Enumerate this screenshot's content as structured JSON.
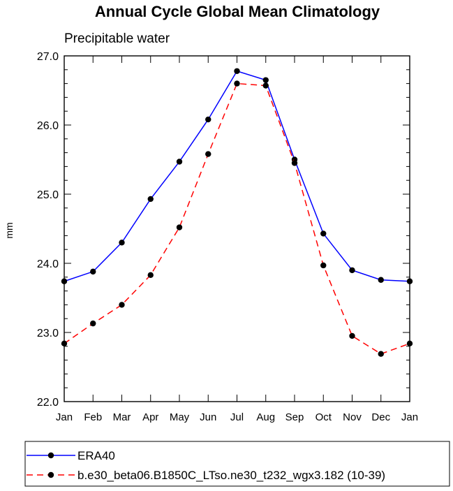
{
  "chart_data": {
    "type": "line",
    "title": "Annual Cycle Global Mean Climatology",
    "subtitle": "Precipitable water",
    "xlabel": "",
    "ylabel": "mm",
    "categories": [
      "Jan",
      "Feb",
      "Mar",
      "Apr",
      "May",
      "Jun",
      "Jul",
      "Aug",
      "Sep",
      "Oct",
      "Nov",
      "Dec",
      "Jan"
    ],
    "ylim": [
      22.0,
      27.0
    ],
    "yticks": [
      "22.0",
      "23.0",
      "24.0",
      "25.0",
      "26.0",
      "27.0"
    ],
    "grid": false,
    "legend_position": "bottom",
    "series": [
      {
        "name": "ERA40",
        "color": "#0000ff",
        "dash": "solid",
        "values": [
          23.74,
          23.88,
          24.3,
          24.93,
          25.47,
          26.08,
          26.78,
          26.65,
          25.5,
          24.43,
          23.9,
          23.76,
          23.74
        ]
      },
      {
        "name": "b.e30_beta06.B1850C_LTso.ne30_t232_wgx3.182 (10-39)",
        "color": "#ff0000",
        "dash": "dashed",
        "values": [
          22.84,
          23.13,
          23.4,
          23.83,
          24.52,
          25.58,
          26.6,
          26.57,
          25.45,
          23.97,
          22.95,
          22.69,
          22.84
        ]
      }
    ]
  }
}
